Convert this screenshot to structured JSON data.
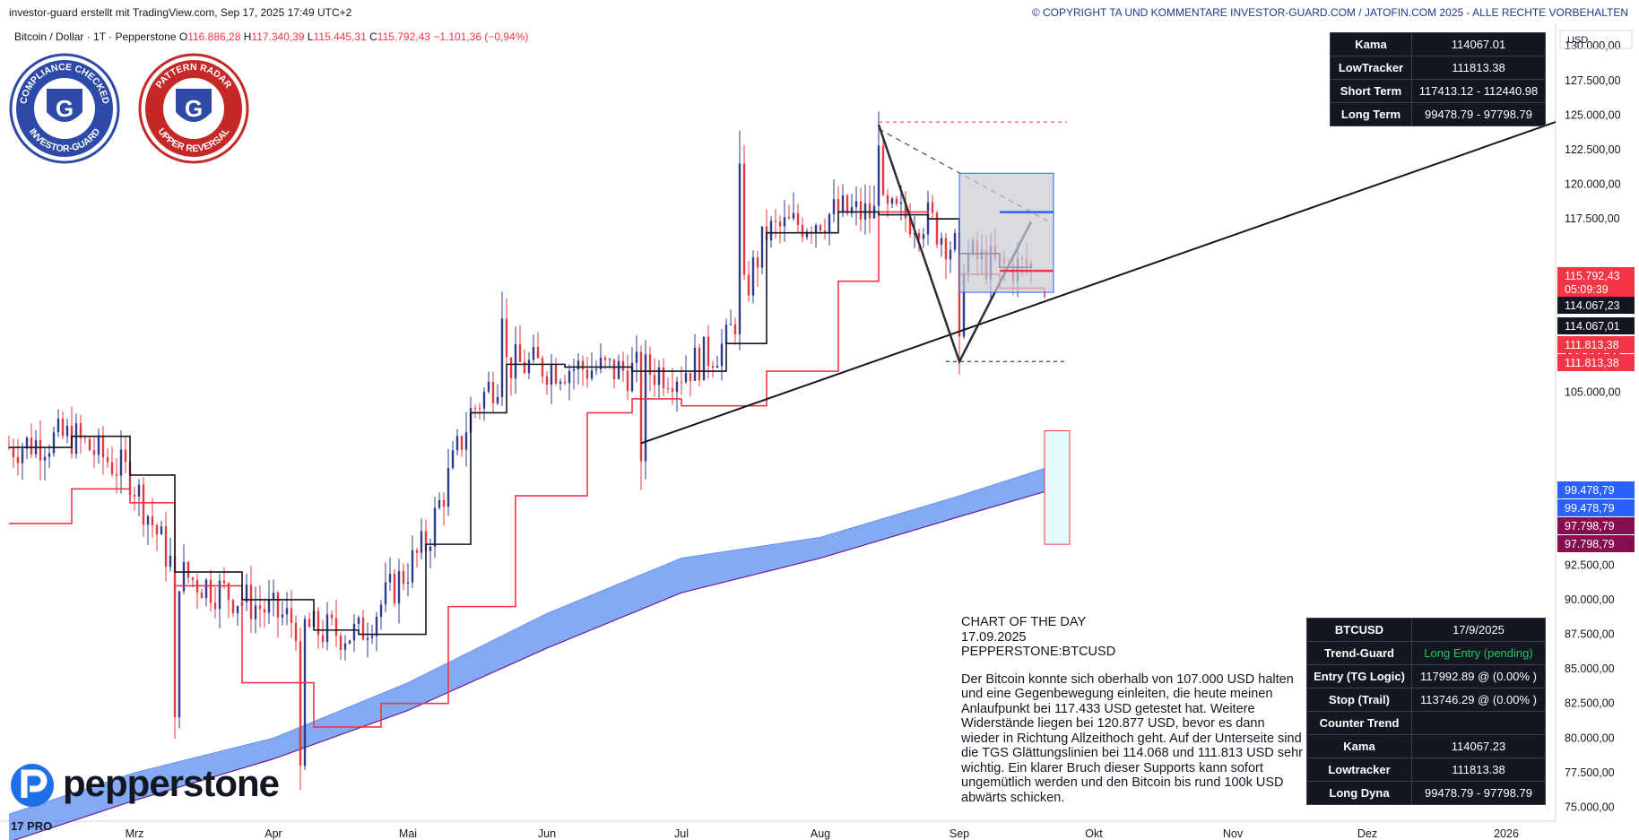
{
  "header": {
    "left": "investor-guard erstellt mit TradingView.com, Sep 17, 2025 17:49 UTC+2",
    "right": "© COPYRIGHT TA UND KOMMENTARE INVESTOR-GUARD.COM / JATOFIN.COM 2025 - ALLE RECHTE VORBEHALTEN"
  },
  "symbol_info": {
    "name": "Bitcoin / Dollar · 1T · Pepperstone",
    "open_label": "O",
    "open": "116.886,28",
    "high_label": "H",
    "high": "117.340,39",
    "low_label": "L",
    "low": "115.445,31",
    "close_label": "C",
    "close": "115.792,43",
    "change": "−1.101,36 (−0,94%)"
  },
  "badges": {
    "left": {
      "top_text": "COMPLIANCE CHECKED",
      "bottom_text": "INVESTOR-GUARD",
      "letter": "G"
    },
    "right": {
      "top_text": "PATTERN RADAR",
      "bottom_text": "UPPER REVERSAL",
      "letter": "G"
    }
  },
  "top_table": [
    {
      "key": "Kama",
      "value": "114067.01"
    },
    {
      "key": "LowTracker",
      "value": "111813.38"
    },
    {
      "key": "Short Term",
      "value": "117413.12 - 112440.98"
    },
    {
      "key": "Long Term",
      "value": "99478.79 - 97798.79"
    }
  ],
  "bottom_table": [
    {
      "key": "BTCUSD",
      "value": "17/9/2025"
    },
    {
      "key": "Trend-Guard",
      "value": "Long Entry (pending)"
    },
    {
      "key": "Entry (TG Logic)",
      "value": "117992.89 @ (0.00% )"
    },
    {
      "key": "Stop (Trail)",
      "value": "113746.29 @ (0.00% )"
    },
    {
      "key": "Counter Trend",
      "value": ""
    },
    {
      "key": "Kama",
      "value": "114067.23"
    },
    {
      "key": "Lowtracker",
      "value": "111813.38"
    },
    {
      "key": "Long Dyna",
      "value": "99478.79 - 97798.79"
    }
  ],
  "note": {
    "title": "CHART OF THE DAY",
    "date": "17.09.2025",
    "symbol": "PEPPERSTONE:BTCUSD",
    "text": "Der Bitcoin konnte sich oberhalb von 107.000 USD halten und eine Gegenbewegung einleiten, die heute meinen Anlaufpunkt bei 117.433 USD getestet hat. Weitere Widerstände liegen bei 120.877 USD, bevor es dann wieder in Richtung Allzeithoch geht. Auf der Unterseite sind die TGS Glättungslinien bei 114.068 und 111.813 USD sehr wichtig. Ein klarer Bruch dieser Supports kann sofort ungemütlich werden und den Bitcoin bis rund 100k USD abwärts schicken."
  },
  "logos": {
    "broker": "pepperstone",
    "platform": "17 PRO"
  },
  "chart_data": {
    "type": "line",
    "title": "Bitcoin / Dollar · 1T · Pepperstone",
    "currency_label": "USD",
    "y_axis_labels": [
      "75.000,00",
      "77.500,00",
      "80.000,00",
      "82.500,00",
      "85.000,00",
      "87.500,00",
      "90.000,00",
      "92.500,00",
      "105.000,00",
      "107.500,00",
      "117.500,00",
      "120.000,00",
      "122.500,00",
      "125.000,00",
      "127.500,00",
      "130.000,00"
    ],
    "ylim": [
      74000,
      131500
    ],
    "x_tick_labels": [
      "Mrz",
      "Apr",
      "Mai",
      "Jun",
      "Jul",
      "Aug",
      "Sep",
      "Okt",
      "Nov",
      "Dez",
      "2026"
    ],
    "xlim": [
      "2025-02-01",
      "2026-01-12"
    ],
    "series": [
      {
        "name": "Kama",
        "color": "#131722",
        "x": [
          "2025-02-01",
          "2025-02-15",
          "2025-02-28",
          "2025-03-10",
          "2025-03-25",
          "2025-04-10",
          "2025-04-20",
          "2025-05-05",
          "2025-05-15",
          "2025-05-23",
          "2025-06-05",
          "2025-06-20",
          "2025-07-01",
          "2025-07-11",
          "2025-07-20",
          "2025-08-05",
          "2025-08-14",
          "2025-08-25",
          "2025-09-01",
          "2025-09-10",
          "2025-09-17"
        ],
        "y": [
          101000,
          101800,
          99000,
          92000,
          90000,
          87800,
          87500,
          94000,
          103500,
          107000,
          106800,
          106500,
          106500,
          108500,
          116500,
          118000,
          117800,
          117500,
          115000,
          114000,
          114067
        ]
      },
      {
        "name": "LowTracker",
        "color": "#f23645",
        "x": [
          "2025-02-01",
          "2025-02-15",
          "2025-02-28",
          "2025-03-10",
          "2025-03-25",
          "2025-04-10",
          "2025-04-25",
          "2025-05-10",
          "2025-05-25",
          "2025-06-10",
          "2025-06-20",
          "2025-07-01",
          "2025-07-20",
          "2025-08-05",
          "2025-08-14",
          "2025-08-25",
          "2025-09-01",
          "2025-09-10",
          "2025-09-20"
        ],
        "y": [
          95500,
          98000,
          97000,
          91000,
          84000,
          80800,
          82500,
          89500,
          97500,
          103500,
          104500,
          104000,
          106500,
          113000,
          118000,
          117500,
          113500,
          112500,
          111813
        ]
      },
      {
        "name": "Long Dyna Upper",
        "color": "#6a8ff5",
        "x": [
          "2025-02-01",
          "2025-03-01",
          "2025-04-01",
          "2025-05-01",
          "2025-06-01",
          "2025-07-01",
          "2025-08-01",
          "2025-09-01",
          "2025-09-20"
        ],
        "y": [
          74500,
          77500,
          80000,
          84000,
          89000,
          93000,
          94500,
          97500,
          99479
        ]
      },
      {
        "name": "Long Dyna Lower",
        "color": "#6a1b9a",
        "x": [
          "2025-02-01",
          "2025-03-01",
          "2025-04-01",
          "2025-05-01",
          "2025-06-01",
          "2025-07-01",
          "2025-08-01",
          "2025-09-01",
          "2025-09-20"
        ],
        "y": [
          72500,
          75500,
          78500,
          82000,
          86500,
          90500,
          93000,
          96000,
          97799
        ]
      }
    ],
    "price_labels": [
      {
        "value": "115.792,43",
        "sub": "05:09:39",
        "color": "#f23645"
      },
      {
        "value": "114.067,23",
        "color": "#131722"
      },
      {
        "value": "114.067,01",
        "color": "#131722"
      },
      {
        "value": "111.813,38",
        "color": "#f23645"
      },
      {
        "value": "111.813,38",
        "color": "#f23645"
      },
      {
        "value": "99.478,79",
        "color": "#2962ff"
      },
      {
        "value": "99.478,79",
        "color": "#2962ff"
      },
      {
        "value": "97.798,79",
        "color": "#880e4f"
      },
      {
        "value": "97.798,79",
        "color": "#880e4f"
      }
    ],
    "drawings": {
      "trendline": {
        "from": {
          "date": "2025-06-22",
          "price": 101300
        },
        "to": {
          "date": "2026-01-12",
          "price": 124500
        }
      },
      "resistance_ath": 124500,
      "support_low": 107200,
      "target_zone": [
        112200,
        120800
      ],
      "entry_level": 117992,
      "stop_level": 113746
    }
  }
}
